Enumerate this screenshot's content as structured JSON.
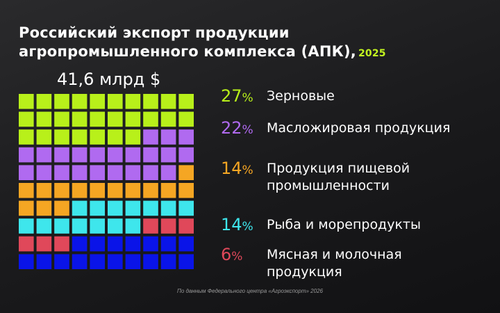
{
  "header": {
    "title_line1": "Российский экспорт продукции",
    "title_line2": "агропромышленного комплекса (АПК),",
    "year": "2025",
    "total": "41,6 млрд $"
  },
  "chart_data": {
    "type": "waffle",
    "grid": {
      "rows": 10,
      "cols": 10
    },
    "unit": "%",
    "categories": [
      {
        "label_line1": "Зерновые",
        "label_line2": "",
        "value": 27,
        "color": "#b8f01a"
      },
      {
        "label_line1": "Масложировая продукция",
        "label_line2": "",
        "value": 22,
        "color": "#b06af0"
      },
      {
        "label_line1": "Продукция пищевой",
        "label_line2": "промышленности",
        "value": 14,
        "color": "#f5a623"
      },
      {
        "label_line1": "Рыба и морепродукты",
        "label_line2": "",
        "value": 14,
        "color": "#3ee6ec"
      },
      {
        "label_line1": "Мясная и молочная",
        "label_line2": "продукция",
        "value": 6,
        "color": "#e0485a"
      },
      {
        "label_line1": "",
        "label_line2": "",
        "value": 17,
        "color": "#0a14e8"
      }
    ]
  },
  "footnote": "По данным Федерального центра «Агроэкспорт» 2026"
}
